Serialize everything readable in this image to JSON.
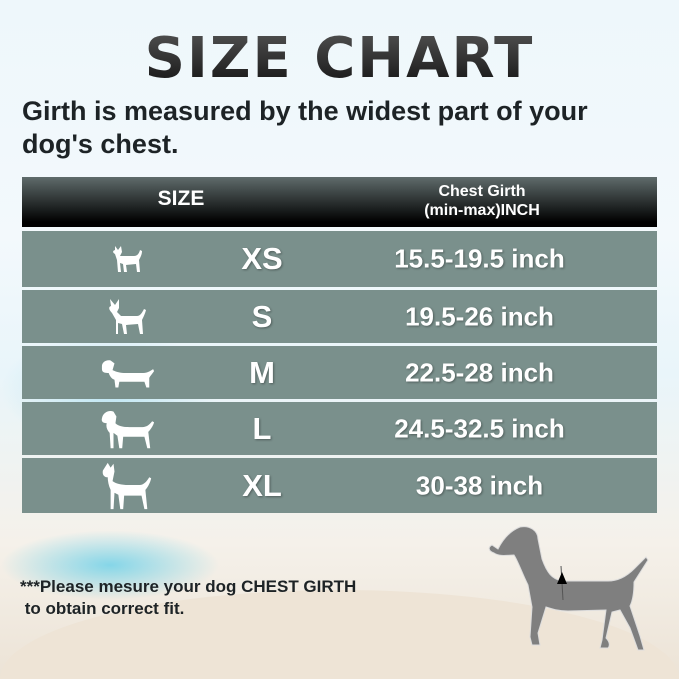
{
  "title": "SIZE CHART",
  "subtitle": "Girth is measured by the widest part of your dog's chest.",
  "header": {
    "size": "SIZE",
    "girth_line1": "Chest Girth",
    "girth_line2": "(min-max)INCH"
  },
  "rows": [
    {
      "size": "XS",
      "girth": "15.5-19.5 inch",
      "icon": "chihuahua-icon"
    },
    {
      "size": "S",
      "girth": "19.5-26 inch",
      "icon": "small-dog-icon"
    },
    {
      "size": "M",
      "girth": "22.5-28 inch",
      "icon": "dachshund-icon"
    },
    {
      "size": "L",
      "girth": "24.5-32.5 inch",
      "icon": "labrador-icon"
    },
    {
      "size": "XL",
      "girth": "30-38 inch",
      "icon": "great-dane-icon"
    }
  ],
  "note_line1": "***Please mesure your dog CHEST GIRTH",
  "note_line2": " to obtain correct fit.",
  "colors": {
    "row": "#7a908c",
    "header": "#000000",
    "dog": "#808080"
  }
}
